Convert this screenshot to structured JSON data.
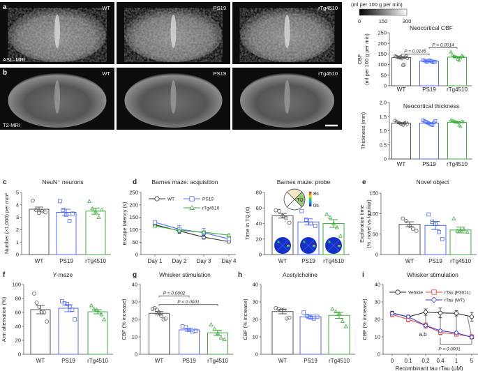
{
  "mri": {
    "rows": [
      {
        "letter": "a",
        "modality": "ASL–MRI"
      },
      {
        "letter": "b",
        "modality": "T2-MRI"
      }
    ],
    "genotypes": [
      "WT",
      "PS19",
      "rTg4510"
    ]
  },
  "colorbar": {
    "unit": "(ml per 100 g per min)",
    "ticks": [
      "0",
      "150",
      "300"
    ],
    "colors": [
      "#000000",
      "#ffffff"
    ]
  },
  "genotype_colors": {
    "WT": "#555555",
    "PS19": "#4f6cff",
    "rTg4510": "#3fae3f"
  },
  "chart_data": [
    {
      "id": "cbf",
      "letter": "",
      "type": "bar",
      "title": "Neocortical CBF",
      "ylabel": [
        "CBF",
        "(ml per 100 g per min)"
      ],
      "categories": [
        "WT",
        "PS19",
        "rTg4510"
      ],
      "ylim": [
        0,
        250
      ],
      "yticks": [
        "0",
        "50",
        "100",
        "150",
        "200",
        "250"
      ],
      "series": [
        {
          "mean": 133,
          "sem": 5,
          "points": [
            140,
            138,
            136,
            134,
            132,
            137,
            128,
            97,
            98,
            135,
            141,
            130
          ]
        },
        {
          "mean": 116,
          "sem": 2,
          "points": [
            121,
            119,
            115,
            112,
            118,
            120,
            117,
            110,
            114,
            113
          ]
        },
        {
          "mean": 135,
          "sem": 3,
          "points": [
            160,
            146,
            140,
            138,
            136,
            126,
            120,
            131,
            142,
            138
          ]
        }
      ],
      "pvalues": [
        {
          "from": 0,
          "to": 1,
          "label": "P = 0.0145",
          "y": 150
        },
        {
          "from": 1,
          "to": 2,
          "label": "P = 0.0014",
          "y": 180
        }
      ]
    },
    {
      "id": "thickness",
      "letter": "",
      "type": "bar",
      "title": "Neocortical thickness",
      "ylabel": [
        "Thickness (mm)"
      ],
      "categories": [
        "WT",
        "PS19",
        "rTg4510"
      ],
      "ylim": [
        0,
        2.0
      ],
      "yticks": [
        "0",
        "0.5",
        "1.0",
        "1.5",
        "2.0"
      ],
      "series": [
        {
          "mean": 1.27,
          "sem": 0.02,
          "points": [
            1.36,
            1.32,
            1.3,
            1.28,
            1.25,
            1.22,
            1.2,
            1.27,
            1.29,
            1.24
          ]
        },
        {
          "mean": 1.27,
          "sem": 0.02,
          "points": [
            1.37,
            1.34,
            1.32,
            1.3,
            1.27,
            1.24,
            1.22,
            1.2,
            1.29,
            1.35
          ]
        },
        {
          "mean": 1.3,
          "sem": 0.02,
          "points": [
            1.38,
            1.36,
            1.34,
            1.33,
            1.31,
            1.3,
            1.2,
            1.15,
            1.33,
            1.32
          ]
        }
      ]
    },
    {
      "id": "neun",
      "letter": "c",
      "type": "bar",
      "title": "NeuN⁺ neurons",
      "ylabel": [
        "Number (×1,000) per mm²"
      ],
      "categories": [
        "WT",
        "PS19",
        "rTg4510"
      ],
      "ylim": [
        0,
        5
      ],
      "yticks": [
        "0",
        "1",
        "2",
        "3",
        "4",
        "5"
      ],
      "series": [
        {
          "mean": 3.65,
          "sem": 0.17,
          "points": [
            4.35,
            3.6,
            3.35,
            3.5,
            3.4
          ]
        },
        {
          "mean": 3.4,
          "sem": 0.25,
          "points": [
            4.3,
            3.6,
            3.2,
            2.7,
            3.3
          ]
        },
        {
          "mean": 3.5,
          "sem": 0.25,
          "points": [
            4.3,
            3.7,
            3.45,
            3.0,
            3.6
          ]
        }
      ]
    },
    {
      "id": "acquisition",
      "letter": "d",
      "type": "line",
      "title": "Barnes maze: acquisition",
      "ylabel": [
        "Escape latency (s)"
      ],
      "xlabel": "",
      "categories": [
        "Day 1",
        "Day 2",
        "Day 3",
        "Day 4"
      ],
      "ylim": [
        0,
        250
      ],
      "yticks": [
        "0",
        "50",
        "100",
        "150",
        "200",
        "250"
      ],
      "series": [
        {
          "name": "WT",
          "marker": "circle",
          "color": "#333333",
          "values": [
            120,
            95,
            70,
            52
          ],
          "errors": [
            8,
            10,
            8,
            5
          ]
        },
        {
          "name": "PS19",
          "marker": "square",
          "color": "#4f6cff",
          "values": [
            130,
            102,
            88,
            63
          ],
          "errors": [
            6,
            15,
            17,
            6
          ]
        },
        {
          "name": "rTg4510",
          "marker": "triangle",
          "color": "#3fae3f",
          "values": [
            115,
            97,
            90,
            78
          ],
          "errors": [
            5,
            6,
            5,
            4
          ]
        }
      ]
    },
    {
      "id": "probe",
      "letter": "",
      "type": "bar",
      "title": "Barnes maze: probe",
      "ylabel": [
        "Time in TQ (s)"
      ],
      "categories": [
        "WT",
        "PS19",
        "rTg4510"
      ],
      "ylim": [
        0,
        80
      ],
      "yticks": [
        "0",
        "20",
        "40",
        "60",
        "80"
      ],
      "inset": {
        "quadrant_label": "TQ",
        "scale_max": "8s",
        "scale_min": "0s"
      },
      "series": [
        {
          "mean": 50,
          "sem": 3,
          "points": [
            57,
            56,
            50,
            47,
            41
          ]
        },
        {
          "mean": 42,
          "sem": 4,
          "points": [
            56,
            45,
            40,
            37
          ]
        },
        {
          "mean": 40,
          "sem": 5,
          "points": [
            52,
            48,
            40,
            35,
            24
          ]
        }
      ]
    },
    {
      "id": "novel",
      "letter": "e",
      "type": "bar",
      "title": "Novel object",
      "ylabel": [
        "Exploration time",
        "(%, novel vs familiar)"
      ],
      "categories": [
        "WT",
        "PS19",
        "rTg4510"
      ],
      "ylim": [
        0,
        150
      ],
      "yticks": [
        "0",
        "50",
        "100",
        "150"
      ],
      "series": [
        {
          "mean": 74,
          "sem": 6,
          "points": [
            88,
            82,
            70,
            63,
            58
          ]
        },
        {
          "mean": 71,
          "sem": 10,
          "points": [
            98,
            80,
            75,
            55,
            38
          ]
        },
        {
          "mean": 60,
          "sem": 7,
          "points": [
            88,
            58,
            60,
            61,
            55
          ]
        }
      ]
    },
    {
      "id": "ymaze",
      "letter": "f",
      "type": "bar",
      "title": "Y-maze",
      "ylabel": [
        "Arm alternation (%)"
      ],
      "categories": [
        "WT",
        "PS19",
        "rTg4510"
      ],
      "ylim": [
        0,
        100
      ],
      "yticks": [
        "0",
        "20",
        "40",
        "60",
        "80",
        "100"
      ],
      "series": [
        {
          "mean": 64,
          "sem": 6,
          "points": [
            87,
            74,
            68,
            60,
            60,
            47
          ]
        },
        {
          "mean": 66,
          "sem": 5,
          "points": [
            76,
            73,
            72,
            68,
            64,
            50
          ]
        },
        {
          "mean": 61,
          "sem": 3,
          "points": [
            70,
            65,
            64,
            60,
            57,
            50
          ]
        }
      ]
    },
    {
      "id": "whisker",
      "letter": "g",
      "type": "bar",
      "title": "Whisker stimulation",
      "ylabel": [
        "CBF (% increase)"
      ],
      "categories": [
        "WT",
        "PS19",
        "rTg4510"
      ],
      "ylim": [
        0,
        40
      ],
      "yticks": [
        "0",
        "10",
        "20",
        "30",
        "40"
      ],
      "series": [
        {
          "mean": 23.5,
          "sem": 1,
          "points": [
            26,
            26.5,
            25.5,
            24,
            22,
            20,
            20.5
          ]
        },
        {
          "mean": 14,
          "sem": 0.8,
          "points": [
            16,
            15.5,
            14,
            13,
            13.5
          ]
        },
        {
          "mean": 12.3,
          "sem": 1.5,
          "points": [
            17,
            14.5,
            12,
            9.5,
            8.5
          ]
        }
      ],
      "pvalues": [
        {
          "from": 0,
          "to": 1,
          "label": "P = 0.0002",
          "y": 33.5
        },
        {
          "from": 0,
          "to": 2,
          "label": "P < 0.0001",
          "y": 28.5
        }
      ]
    },
    {
      "id": "acetylcholine",
      "letter": "h",
      "type": "bar",
      "title": "Acetylcholine",
      "ylabel": [
        "CBF (% increase)"
      ],
      "categories": [
        "WT",
        "PS19",
        "rTg4510"
      ],
      "ylim": [
        0,
        40
      ],
      "yticks": [
        "0",
        "10",
        "20",
        "30",
        "40"
      ],
      "series": [
        {
          "mean": 24.5,
          "sem": 1.3,
          "points": [
            26.5,
            26,
            25.5,
            25.5,
            20.5,
            21
          ]
        },
        {
          "mean": 21.5,
          "sem": 1,
          "points": [
            24,
            22,
            21,
            20.5,
            21.5
          ]
        },
        {
          "mean": 22.3,
          "sem": 1.7,
          "points": [
            26,
            24.5,
            23.5,
            19,
            16
          ]
        }
      ]
    },
    {
      "id": "rtau",
      "letter": "i",
      "type": "line",
      "title": "Whisker stimulation",
      "ylabel": [
        "CBF (% increase)"
      ],
      "xlabel": "Recombinant tau rTau (μM)",
      "categories": [
        "0",
        "0.1",
        "0.2",
        "0.4",
        "1",
        "5"
      ],
      "ylim": [
        0,
        40
      ],
      "yticks": [
        "0",
        "10",
        "20",
        "30",
        "40"
      ],
      "series": [
        {
          "name": "Vehicle",
          "marker": "circle",
          "color": "#222222",
          "values": [
            23.7,
            21.5,
            24.2,
            23.7,
            23.5,
            21.5
          ],
          "errors": [
            1,
            1,
            1.8,
            2.8,
            1.5,
            2.5
          ]
        },
        {
          "name": "rTau (P301L)",
          "marker": "square",
          "color": "#e8403a",
          "values": [
            22.8,
            20,
            16.5,
            12.5,
            11.5,
            10
          ],
          "errors": [
            1.2,
            1.5,
            1.5,
            1.3,
            1.2,
            1.3
          ]
        },
        {
          "name": "rTau (WT)",
          "marker": "diamond",
          "color": "#3a3ad8",
          "values": [
            23.5,
            21.5,
            16.5,
            13.5,
            12.3,
            9.8
          ],
          "errors": [
            0.8,
            0.8,
            0.8,
            0.8,
            0.8,
            0.8
          ]
        }
      ],
      "annotations": {
        "significance_letters": "a,b",
        "pvalue": "P < 0.0001"
      }
    }
  ]
}
